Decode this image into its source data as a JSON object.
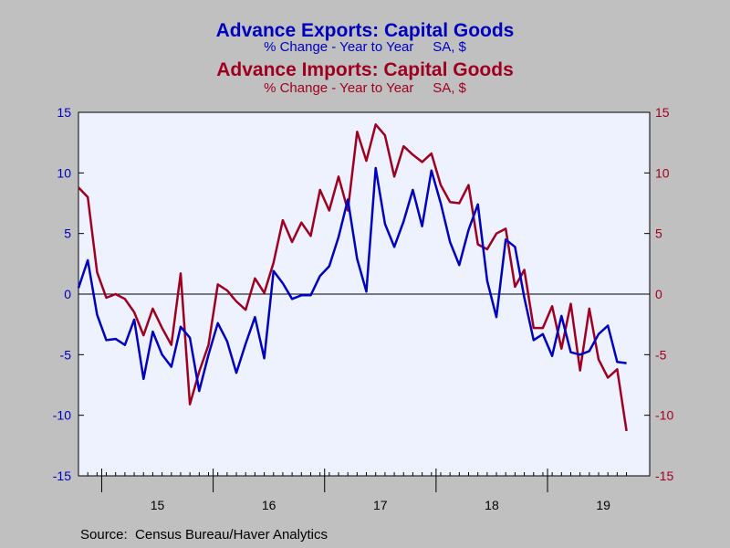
{
  "chart_data": {
    "type": "line",
    "titles": [
      {
        "text": "Advance Exports: Capital Goods",
        "color": "#0000c0"
      },
      {
        "text": "% Change - Year to Year     SA, $",
        "color": "#0000c0"
      },
      {
        "text": "Advance Imports: Capital Goods",
        "color": "#a00020"
      },
      {
        "text": "% Change - Year to Year     SA, $",
        "color": "#a00020"
      }
    ],
    "source": "Source:  Census Bureau/Haver Analytics",
    "x_labels": [
      "15",
      "16",
      "17",
      "18",
      "19"
    ],
    "left_axis": {
      "min": -15,
      "max": 15,
      "ticks": [
        "15",
        "10",
        "5",
        "0",
        "-5",
        "-10",
        "-15"
      ],
      "color": "#0000c0"
    },
    "right_axis": {
      "min": -15,
      "max": 15,
      "ticks": [
        "15",
        "10",
        "5",
        "0",
        "-5",
        "-10",
        "-15"
      ],
      "color": "#a00020"
    },
    "grid": false,
    "zero_line": true,
    "series": [
      {
        "name": "Advance Exports: Capital Goods",
        "color": "#0000c0",
        "axis": "left",
        "values": [
          0.5,
          2.8,
          -1.7,
          -3.8,
          -3.7,
          -4.2,
          -2.1,
          -7.0,
          -3.1,
          -5.0,
          -6.0,
          -2.7,
          -3.6,
          -8.0,
          -5.0,
          -2.4,
          -3.9,
          -6.5,
          -4.1,
          -1.9,
          -5.3,
          1.9,
          0.9,
          -0.4,
          -0.1,
          -0.1,
          1.5,
          2.3,
          4.7,
          7.8,
          2.9,
          0.2,
          10.4,
          5.8,
          3.9,
          6.0,
          8.6,
          5.6,
          10.2,
          7.5,
          4.3,
          2.4,
          5.3,
          7.4,
          1.1,
          -1.9,
          4.5,
          3.9,
          -0.3,
          -3.8,
          -3.3,
          -5.1,
          -1.8,
          -4.8,
          -5.0,
          -4.7,
          -3.3,
          -2.6,
          -5.6,
          -5.7
        ]
      },
      {
        "name": "Advance Imports: Capital Goods",
        "color": "#a00020",
        "axis": "right",
        "values": [
          8.8,
          8.0,
          1.8,
          -0.3,
          0.0,
          -0.4,
          -1.5,
          -3.4,
          -1.2,
          -2.8,
          -4.2,
          1.7,
          -9.1,
          -6.4,
          -4.2,
          0.8,
          0.3,
          -0.6,
          -1.3,
          1.3,
          0.1,
          2.6,
          6.1,
          4.3,
          5.9,
          4.8,
          8.6,
          6.9,
          9.7,
          6.9,
          13.4,
          11.0,
          14.0,
          13.1,
          9.7,
          12.2,
          11.5,
          10.9,
          11.6,
          9.0,
          7.6,
          7.5,
          9.0,
          4.1,
          3.7,
          5.0,
          5.4,
          0.6,
          2.0,
          -2.8,
          -2.8,
          -1.0,
          -4.5,
          -0.8,
          -6.3,
          -1.2,
          -5.4,
          -6.9,
          -6.2,
          -11.3
        ]
      }
    ]
  }
}
